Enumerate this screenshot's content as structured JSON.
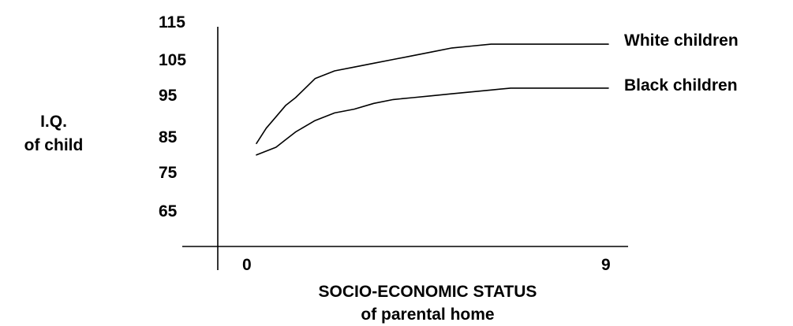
{
  "chart_data": {
    "type": "line",
    "x": [
      0,
      0.25,
      0.5,
      0.75,
      1,
      1.5,
      2,
      2.5,
      3,
      3.5,
      4,
      4.5,
      5,
      5.5,
      6,
      6.5,
      7,
      7.5,
      8,
      8.5,
      9
    ],
    "series": [
      {
        "name": "White children",
        "values": [
          83,
          87,
          90,
          93,
          95,
          100,
          102,
          103,
          104,
          105,
          106,
          107,
          108,
          108.5,
          109,
          109,
          109,
          109,
          109,
          109,
          109
        ]
      },
      {
        "name": "Black children",
        "values": [
          80,
          81,
          82,
          84,
          86,
          89,
          91,
          92,
          93.5,
          94.5,
          95,
          95.5,
          96,
          96.5,
          97,
          97.5,
          97.5,
          97.5,
          97.5,
          97.5,
          97.5
        ]
      }
    ],
    "y_ticks": [
      "115",
      "105",
      "95",
      "85",
      "75",
      "65"
    ],
    "x_ticks": [
      "0",
      "9"
    ],
    "ylabel": [
      "I.Q.",
      "of child"
    ],
    "xlabel": [
      "SOCIO-ECONOMIC STATUS",
      "of parental home"
    ],
    "ylim": [
      55,
      115
    ],
    "xlim": [
      -1.5,
      9.8
    ],
    "grid": false,
    "legend": "inline-right"
  }
}
